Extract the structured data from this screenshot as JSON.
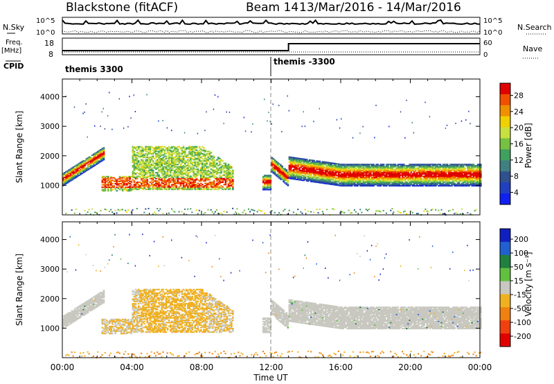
{
  "header": {
    "station": "Blackstone (fitACF)",
    "beam_label": "Beam 14",
    "date_range": "13/Mar/2016 - 14/Mar/2016"
  },
  "summary_panels": {
    "sky_label": "N.Sky",
    "search_label": "N.Search",
    "freq_label_top": "Freq.",
    "freq_label_unit": "[MHz]",
    "nave_label": "Nave",
    "cpid_label": "CPID",
    "sky_ticks": [
      "10^5",
      "10^0"
    ],
    "search_ticks": [
      "10^5",
      "10^0"
    ],
    "freq_ticks": [
      "18",
      "8"
    ],
    "nave_ticks": [
      "60",
      "0"
    ],
    "cpid_segments": [
      {
        "name": "themis 3300",
        "start_hour": 0
      },
      {
        "name": "themis -3300",
        "start_hour": 12
      }
    ]
  },
  "chart_data": [
    {
      "type": "heatmap",
      "title": "Power",
      "xlabel": "",
      "ylabel": "Slant Range [km]",
      "xlim_hours": [
        0,
        24
      ],
      "ylim": [
        0,
        4600
      ],
      "y_ticks": [
        1000,
        2000,
        3000,
        4000
      ],
      "colorbar_label": "Power [dB]",
      "colorbar_ticks": [
        "28",
        "24",
        "20",
        "16",
        "12",
        "8",
        "4"
      ],
      "colorbar_colors": [
        "#e00000",
        "#f05000",
        "#f09000",
        "#f0d000",
        "#c8e040",
        "#78c040",
        "#40a060",
        "#408080",
        "#305090",
        "#2040c0",
        "#1020f0"
      ],
      "features": [
        {
          "name": "early sweeping echo",
          "hours": [
            0,
            2.4
          ],
          "range_km": [
            1000,
            2300
          ]
        },
        {
          "name": "daytime patch",
          "hours": [
            2,
            10
          ],
          "range_km": [
            800,
            2400
          ]
        },
        {
          "name": "evening band",
          "hours": [
            13,
            24
          ],
          "range_km": [
            1200,
            2000
          ]
        }
      ]
    },
    {
      "type": "heatmap",
      "title": "Velocity",
      "xlabel": "Time UT",
      "ylabel": "Slant Range [km]",
      "xlim_hours": [
        0,
        24
      ],
      "ylim": [
        0,
        4600
      ],
      "y_ticks": [
        1000,
        2000,
        3000,
        4000
      ],
      "x_ticks": [
        "00:00",
        "04:00",
        "08:00",
        "12:00",
        "16:00",
        "20:00",
        "00:00"
      ],
      "colorbar_label": "Velocity [m s⁻¹]",
      "colorbar_ticks": [
        "200",
        "100",
        "50",
        "15",
        "-15",
        "-50",
        "-100",
        "-200"
      ],
      "colorbar_colors": [
        "#1020c0",
        "#2060d0",
        "#208040",
        "#60c040",
        "#c8c8c0",
        "#f0b020",
        "#f08010",
        "#f04010",
        "#e00000"
      ],
      "ground_scatter_color": "#c8c8c0"
    }
  ],
  "colors": {
    "axis": "#000000",
    "cpid_divider": "#888888"
  }
}
